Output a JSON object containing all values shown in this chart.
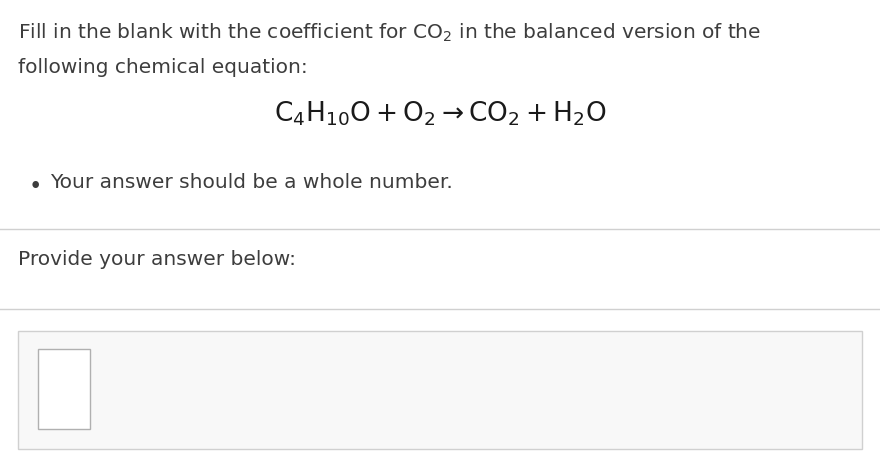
{
  "bg_color": "#ffffff",
  "text_color": "#3d3d3d",
  "equation_color": "#1a1a1a",
  "line1": "Fill in the blank with the coefficient for $\\mathregular{CO_2}$ in the balanced version of the",
  "line2": "following chemical equation:",
  "equation": "$\\mathregular{C_4H_{10}O + O_2 \\rightarrow CO_2 + H_2O}$",
  "bullet_text": "Your answer should be a whole number.",
  "provide_text": "Provide your answer below:",
  "font_size_main": 14.5,
  "font_size_equation": 19,
  "font_size_bullet": 14.5,
  "separator_color": "#d0d0d0",
  "container_edge": "#d0d0d0",
  "container_face": "#f8f8f8",
  "small_box_edge": "#b0b0b0",
  "small_box_face": "#ffffff"
}
